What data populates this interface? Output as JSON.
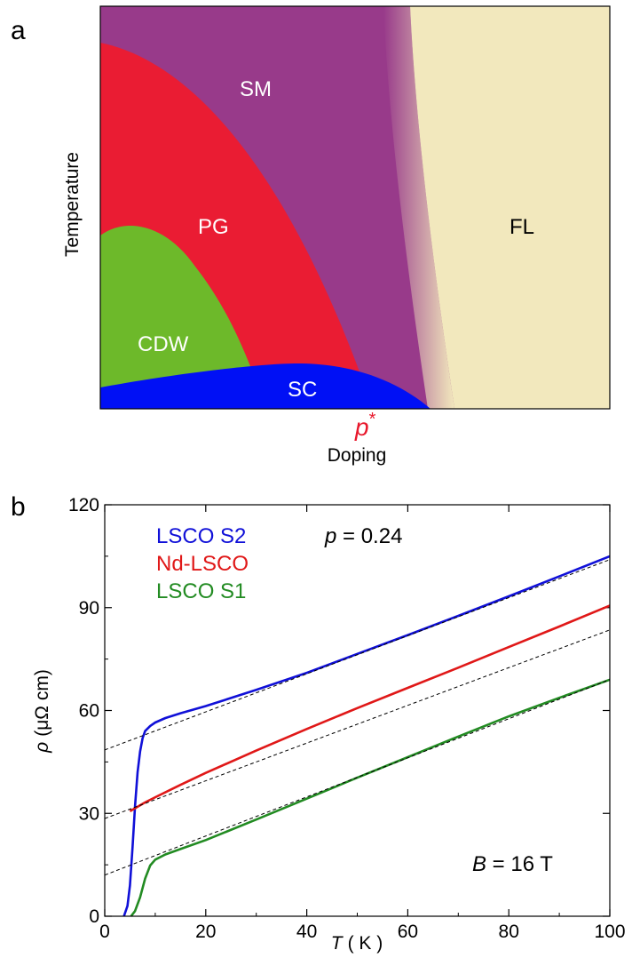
{
  "chart_data": [
    {
      "type": "diagram",
      "panel": "a",
      "xlabel": "Doping",
      "ylabel": "Temperature",
      "marker_label": "p*",
      "regions": [
        {
          "name": "SM",
          "color": "#983a8a"
        },
        {
          "name": "PG",
          "color": "#ea1c33"
        },
        {
          "name": "CDW",
          "color": "#6db92a"
        },
        {
          "name": "SC",
          "color": "#0010f5"
        },
        {
          "name": "FL",
          "color": "#f2e8bd"
        }
      ]
    },
    {
      "type": "line",
      "panel": "b",
      "xlabel_var": "T",
      "xlabel_unit": "( K )",
      "ylabel_var": "ρ",
      "ylabel_unit": "(μΩ cm)",
      "xlim": [
        0,
        100
      ],
      "ylim": [
        0,
        120
      ],
      "xticks": [
        0,
        20,
        40,
        60,
        80,
        100
      ],
      "yticks": [
        0,
        30,
        60,
        90,
        120
      ],
      "annotation_p": {
        "var": "p",
        "text": " = 0.24"
      },
      "annotation_B": {
        "var": "B",
        "text": " = 16 T"
      },
      "series": [
        {
          "name": "LSCO S2",
          "color": "#1010d8",
          "x": [
            3.8,
            4.5,
            5,
            5.5,
            6,
            6.5,
            7,
            7.5,
            8,
            9,
            10,
            12,
            15,
            20,
            30,
            40,
            50,
            60,
            70,
            80,
            90,
            100
          ],
          "y": [
            0,
            3,
            9,
            20,
            32,
            42,
            48,
            52,
            54,
            55.5,
            56.5,
            57.8,
            59.2,
            61.3,
            66,
            71,
            76.5,
            82,
            87.6,
            93.3,
            99.1,
            105
          ]
        },
        {
          "name": "Nd-LSCO",
          "color": "#e01818",
          "x": [
            5,
            6,
            8,
            10,
            15,
            20,
            30,
            40,
            50,
            60,
            70,
            80,
            90,
            100
          ],
          "y": [
            30.6,
            31.5,
            33.2,
            34.7,
            38.3,
            41.8,
            48.3,
            54.6,
            60.7,
            66.6,
            72.5,
            78.5,
            84.5,
            90.6
          ]
        },
        {
          "name": "LSCO S1",
          "color": "#228b22",
          "x": [
            5.2,
            6,
            7,
            8,
            9,
            10,
            12,
            15,
            20,
            30,
            40,
            50,
            60,
            70,
            80,
            90,
            100
          ],
          "y": [
            0,
            1.5,
            5.5,
            11,
            14.8,
            16.5,
            18,
            19.6,
            22.2,
            28.2,
            34.3,
            40.4,
            46.4,
            52.4,
            58.3,
            63.7,
            69
          ]
        }
      ],
      "fits": [
        {
          "x": [
            0,
            100
          ],
          "y": [
            48.5,
            104
          ]
        },
        {
          "x": [
            0,
            100
          ],
          "y": [
            28.5,
            83.5
          ]
        },
        {
          "x": [
            0,
            100
          ],
          "y": [
            12,
            69
          ]
        }
      ]
    }
  ]
}
